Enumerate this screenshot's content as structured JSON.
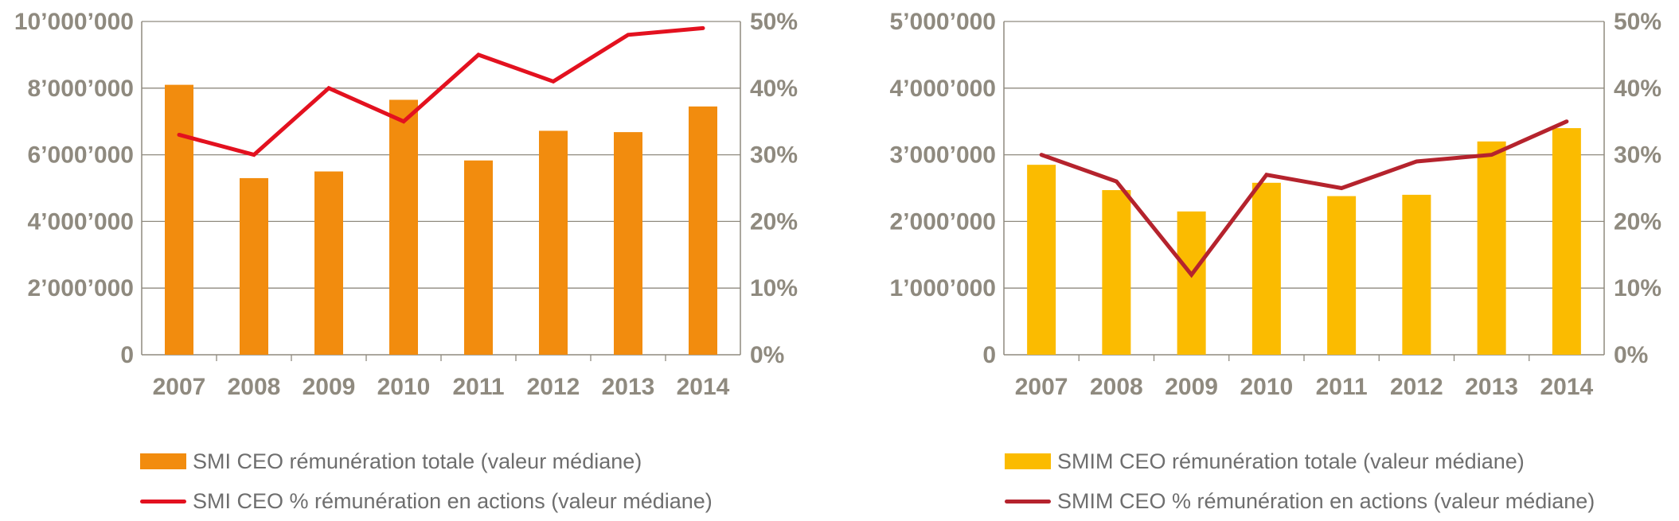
{
  "chart_data": [
    {
      "type": "bar",
      "categories": [
        "2007",
        "2008",
        "2009",
        "2010",
        "2011",
        "2012",
        "2013",
        "2014"
      ],
      "series": [
        {
          "name": "SMI CEO rémunération totale (valeur médiane)",
          "kind": "bar",
          "axis": "left",
          "color": "#f28c0e",
          "values": [
            8100000,
            5300000,
            5500000,
            7650000,
            5830000,
            6720000,
            6680000,
            7450000
          ]
        },
        {
          "name": "SMI CEO % rémunération en actions (valeur médiane)",
          "kind": "line",
          "axis": "right",
          "color": "#e3111f",
          "values": [
            33,
            30,
            40,
            35,
            45,
            41,
            48,
            49
          ]
        }
      ],
      "ylim_left": [
        0,
        10000000
      ],
      "ylim_right": [
        0,
        50
      ],
      "yticks_left": [
        "0",
        "2’000’000",
        "4’000’000",
        "6’000’000",
        "8’000’000",
        "10’000’000"
      ],
      "yticks_right": [
        "0%",
        "10%",
        "20%",
        "30%",
        "40%",
        "50%"
      ],
      "grid": true,
      "legend": [
        {
          "label": "SMI CEO rémunération totale (valeur médiane)",
          "kind": "bar",
          "color": "#f28c0e"
        },
        {
          "label": "SMI CEO % rémunération en actions (valeur médiane)",
          "kind": "line",
          "color": "#e3111f"
        }
      ]
    },
    {
      "type": "bar",
      "categories": [
        "2007",
        "2008",
        "2009",
        "2010",
        "2011",
        "2012",
        "2013",
        "2014"
      ],
      "series": [
        {
          "name": "SMIM CEO rémunération totale (valeur médiane)",
          "kind": "bar",
          "axis": "left",
          "color": "#fbbb00",
          "values": [
            2850000,
            2470000,
            2150000,
            2580000,
            2380000,
            2400000,
            3200000,
            3400000
          ]
        },
        {
          "name": "SMIM CEO % rémunération en actions (valeur médiane)",
          "kind": "line",
          "axis": "right",
          "color": "#b5232d",
          "values": [
            30,
            26,
            12,
            27,
            25,
            29,
            30,
            35
          ]
        }
      ],
      "ylim_left": [
        0,
        5000000
      ],
      "ylim_right": [
        0,
        50
      ],
      "yticks_left": [
        "0",
        "1’000’000",
        "2’000’000",
        "3’000’000",
        "4’000’000",
        "5’000’000"
      ],
      "yticks_right": [
        "0%",
        "10%",
        "20%",
        "30%",
        "40%",
        "50%"
      ],
      "grid": true,
      "legend": [
        {
          "label": "SMIM CEO rémunération totale (valeur médiane)",
          "kind": "bar",
          "color": "#fbbb00"
        },
        {
          "label": "SMIM CEO % rémunération en actions (valeur médiane)",
          "kind": "line",
          "color": "#b5232d"
        }
      ]
    }
  ],
  "colors": {
    "tick_text": "#8f8a7f",
    "grid": "#8f8a7f",
    "legend_text": "#6e6e6e"
  }
}
